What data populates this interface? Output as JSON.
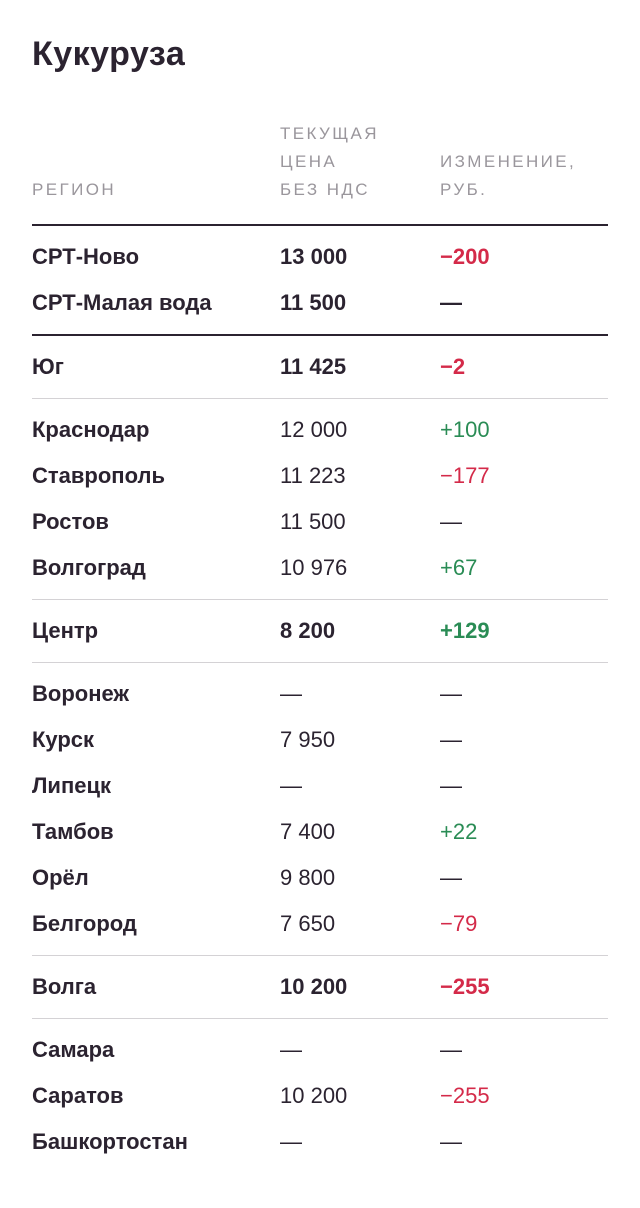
{
  "title": "Кукуруза",
  "header": {
    "region": "РЕГИОН",
    "price": [
      "ТЕКУЩАЯ",
      "ЦЕНА",
      "БЕЗ НДС"
    ],
    "change": [
      "ИЗМЕНЕНИЕ,",
      "РУБ."
    ]
  },
  "colors": {
    "positive": "#2a8c55",
    "negative": "#d42a49",
    "text": "#2b2330",
    "muted": "#9a969c"
  },
  "groups": [
    {
      "rows": [
        {
          "region": "СРТ-Ново",
          "price": "13 000",
          "change": "−200",
          "trend": "neg",
          "bold": true
        },
        {
          "region": "СРТ-Малая вода",
          "price": "11 500",
          "change": "—",
          "trend": "neu",
          "bold": true
        }
      ]
    },
    {
      "rows": [
        {
          "region": "Юг",
          "price": "11 425",
          "change": "−2",
          "trend": "neg",
          "bold": true
        }
      ]
    },
    {
      "rows": [
        {
          "region": "Краснодар",
          "price": "12 000",
          "change": "+100",
          "trend": "pos",
          "bold": false
        },
        {
          "region": "Ставрополь",
          "price": "11 223",
          "change": "−177",
          "trend": "neg",
          "bold": false
        },
        {
          "region": "Ростов",
          "price": "11 500",
          "change": "—",
          "trend": "neu",
          "bold": false
        },
        {
          "region": "Волгоград",
          "price": "10 976",
          "change": "+67",
          "trend": "pos",
          "bold": false
        }
      ]
    },
    {
      "rows": [
        {
          "region": "Центр",
          "price": "8 200",
          "change": "+129",
          "trend": "pos",
          "bold": true
        }
      ]
    },
    {
      "rows": [
        {
          "region": "Воронеж",
          "price": "—",
          "change": "—",
          "trend": "neu",
          "bold": false
        },
        {
          "region": "Курск",
          "price": "7 950",
          "change": "—",
          "trend": "neu",
          "bold": false
        },
        {
          "region": "Липецк",
          "price": "—",
          "change": "—",
          "trend": "neu",
          "bold": false
        },
        {
          "region": "Тамбов",
          "price": "7 400",
          "change": "+22",
          "trend": "pos",
          "bold": false
        },
        {
          "region": "Орёл",
          "price": "9 800",
          "change": "—",
          "trend": "neu",
          "bold": false
        },
        {
          "region": "Белгород",
          "price": "7 650",
          "change": "−79",
          "trend": "neg",
          "bold": false
        }
      ]
    },
    {
      "rows": [
        {
          "region": "Волга",
          "price": "10 200",
          "change": "−255",
          "trend": "neg",
          "bold": true
        }
      ]
    },
    {
      "rows": [
        {
          "region": "Самара",
          "price": "—",
          "change": "—",
          "trend": "neu",
          "bold": false
        },
        {
          "region": "Саратов",
          "price": "10 200",
          "change": "−255",
          "trend": "neg",
          "bold": false
        },
        {
          "region": "Башкортостан",
          "price": "—",
          "change": "—",
          "trend": "neu",
          "bold": false
        }
      ]
    }
  ]
}
